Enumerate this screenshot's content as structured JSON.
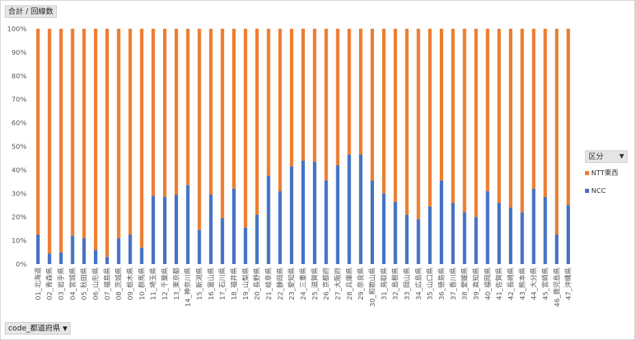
{
  "filter_button_label": "合計 / 回線数",
  "axis_field_button_label": "code_都道府県",
  "axis_field_button_arrow": "▼",
  "legend": {
    "title": "区分",
    "arrow": "▼",
    "items": [
      {
        "label": "NTT東西",
        "color": "#ED7D31"
      },
      {
        "label": "NCC",
        "color": "#4472C4"
      }
    ]
  },
  "chart_data": {
    "type": "bar",
    "stacked": "percent",
    "ylim": [
      0,
      100
    ],
    "yticks": [
      "0%",
      "10%",
      "20%",
      "30%",
      "40%",
      "50%",
      "60%",
      "70%",
      "80%",
      "90%",
      "100%"
    ],
    "grid": false,
    "legend_position": "right",
    "categories": [
      "01_北海道",
      "02_青森県",
      "03_岩手県",
      "04_宮城県",
      "05_秋田県",
      "06_山形県",
      "07_福島県",
      "08_茨城県",
      "09_栃木県",
      "10_群馬県",
      "11_埼玉県",
      "12_千葉県",
      "13_東京都",
      "14_神奈川県",
      "15_新潟県",
      "16_富山県",
      "17_石川県",
      "18_福井県",
      "19_山梨県",
      "20_長野県",
      "21_岐阜県",
      "22_静岡県",
      "23_愛知県",
      "24_三重県",
      "25_滋賀県",
      "26_京都府",
      "27_大阪府",
      "28_兵庫県",
      "29_奈良県",
      "30_和歌山県",
      "31_鳥取県",
      "32_島根県",
      "33_岡山県",
      "34_広島県",
      "35_山口県",
      "36_徳島県",
      "37_香川県",
      "38_愛媛県",
      "39_高知県",
      "40_福岡県",
      "41_佐賀県",
      "42_長崎県",
      "43_熊本県",
      "44_大分県",
      "45_宮崎県",
      "46_鹿児島県",
      "47_沖縄県"
    ],
    "series": [
      {
        "name": "NCC",
        "color": "#4472C4",
        "values": [
          12.5,
          4.5,
          5,
          12,
          11,
          6,
          3,
          11,
          12.5,
          7,
          29,
          28.5,
          29.5,
          33.5,
          14.5,
          29.5,
          19.5,
          32,
          15.5,
          21,
          37.5,
          31,
          41.5,
          44,
          43.5,
          35.5,
          42,
          46.5,
          46.5,
          35.5,
          30,
          26.5,
          21,
          19,
          24.5,
          35.5,
          26,
          22,
          20,
          31,
          26,
          24,
          22,
          32,
          28.5,
          12.5,
          25
        ]
      },
      {
        "name": "NTT東西",
        "color": "#ED7D31",
        "values": [
          87.5,
          95.5,
          95,
          88,
          89,
          94,
          97,
          89,
          87.5,
          93,
          71,
          71.5,
          70.5,
          66.5,
          85.5,
          70.5,
          80.5,
          68,
          84.5,
          79,
          62.5,
          69,
          58.5,
          56,
          56.5,
          64.5,
          58,
          53.5,
          53.5,
          64.5,
          70,
          73.5,
          79,
          81,
          75.5,
          64.5,
          74,
          78,
          80,
          69,
          74,
          76,
          78,
          68,
          71.5,
          87.5,
          75
        ]
      }
    ]
  }
}
